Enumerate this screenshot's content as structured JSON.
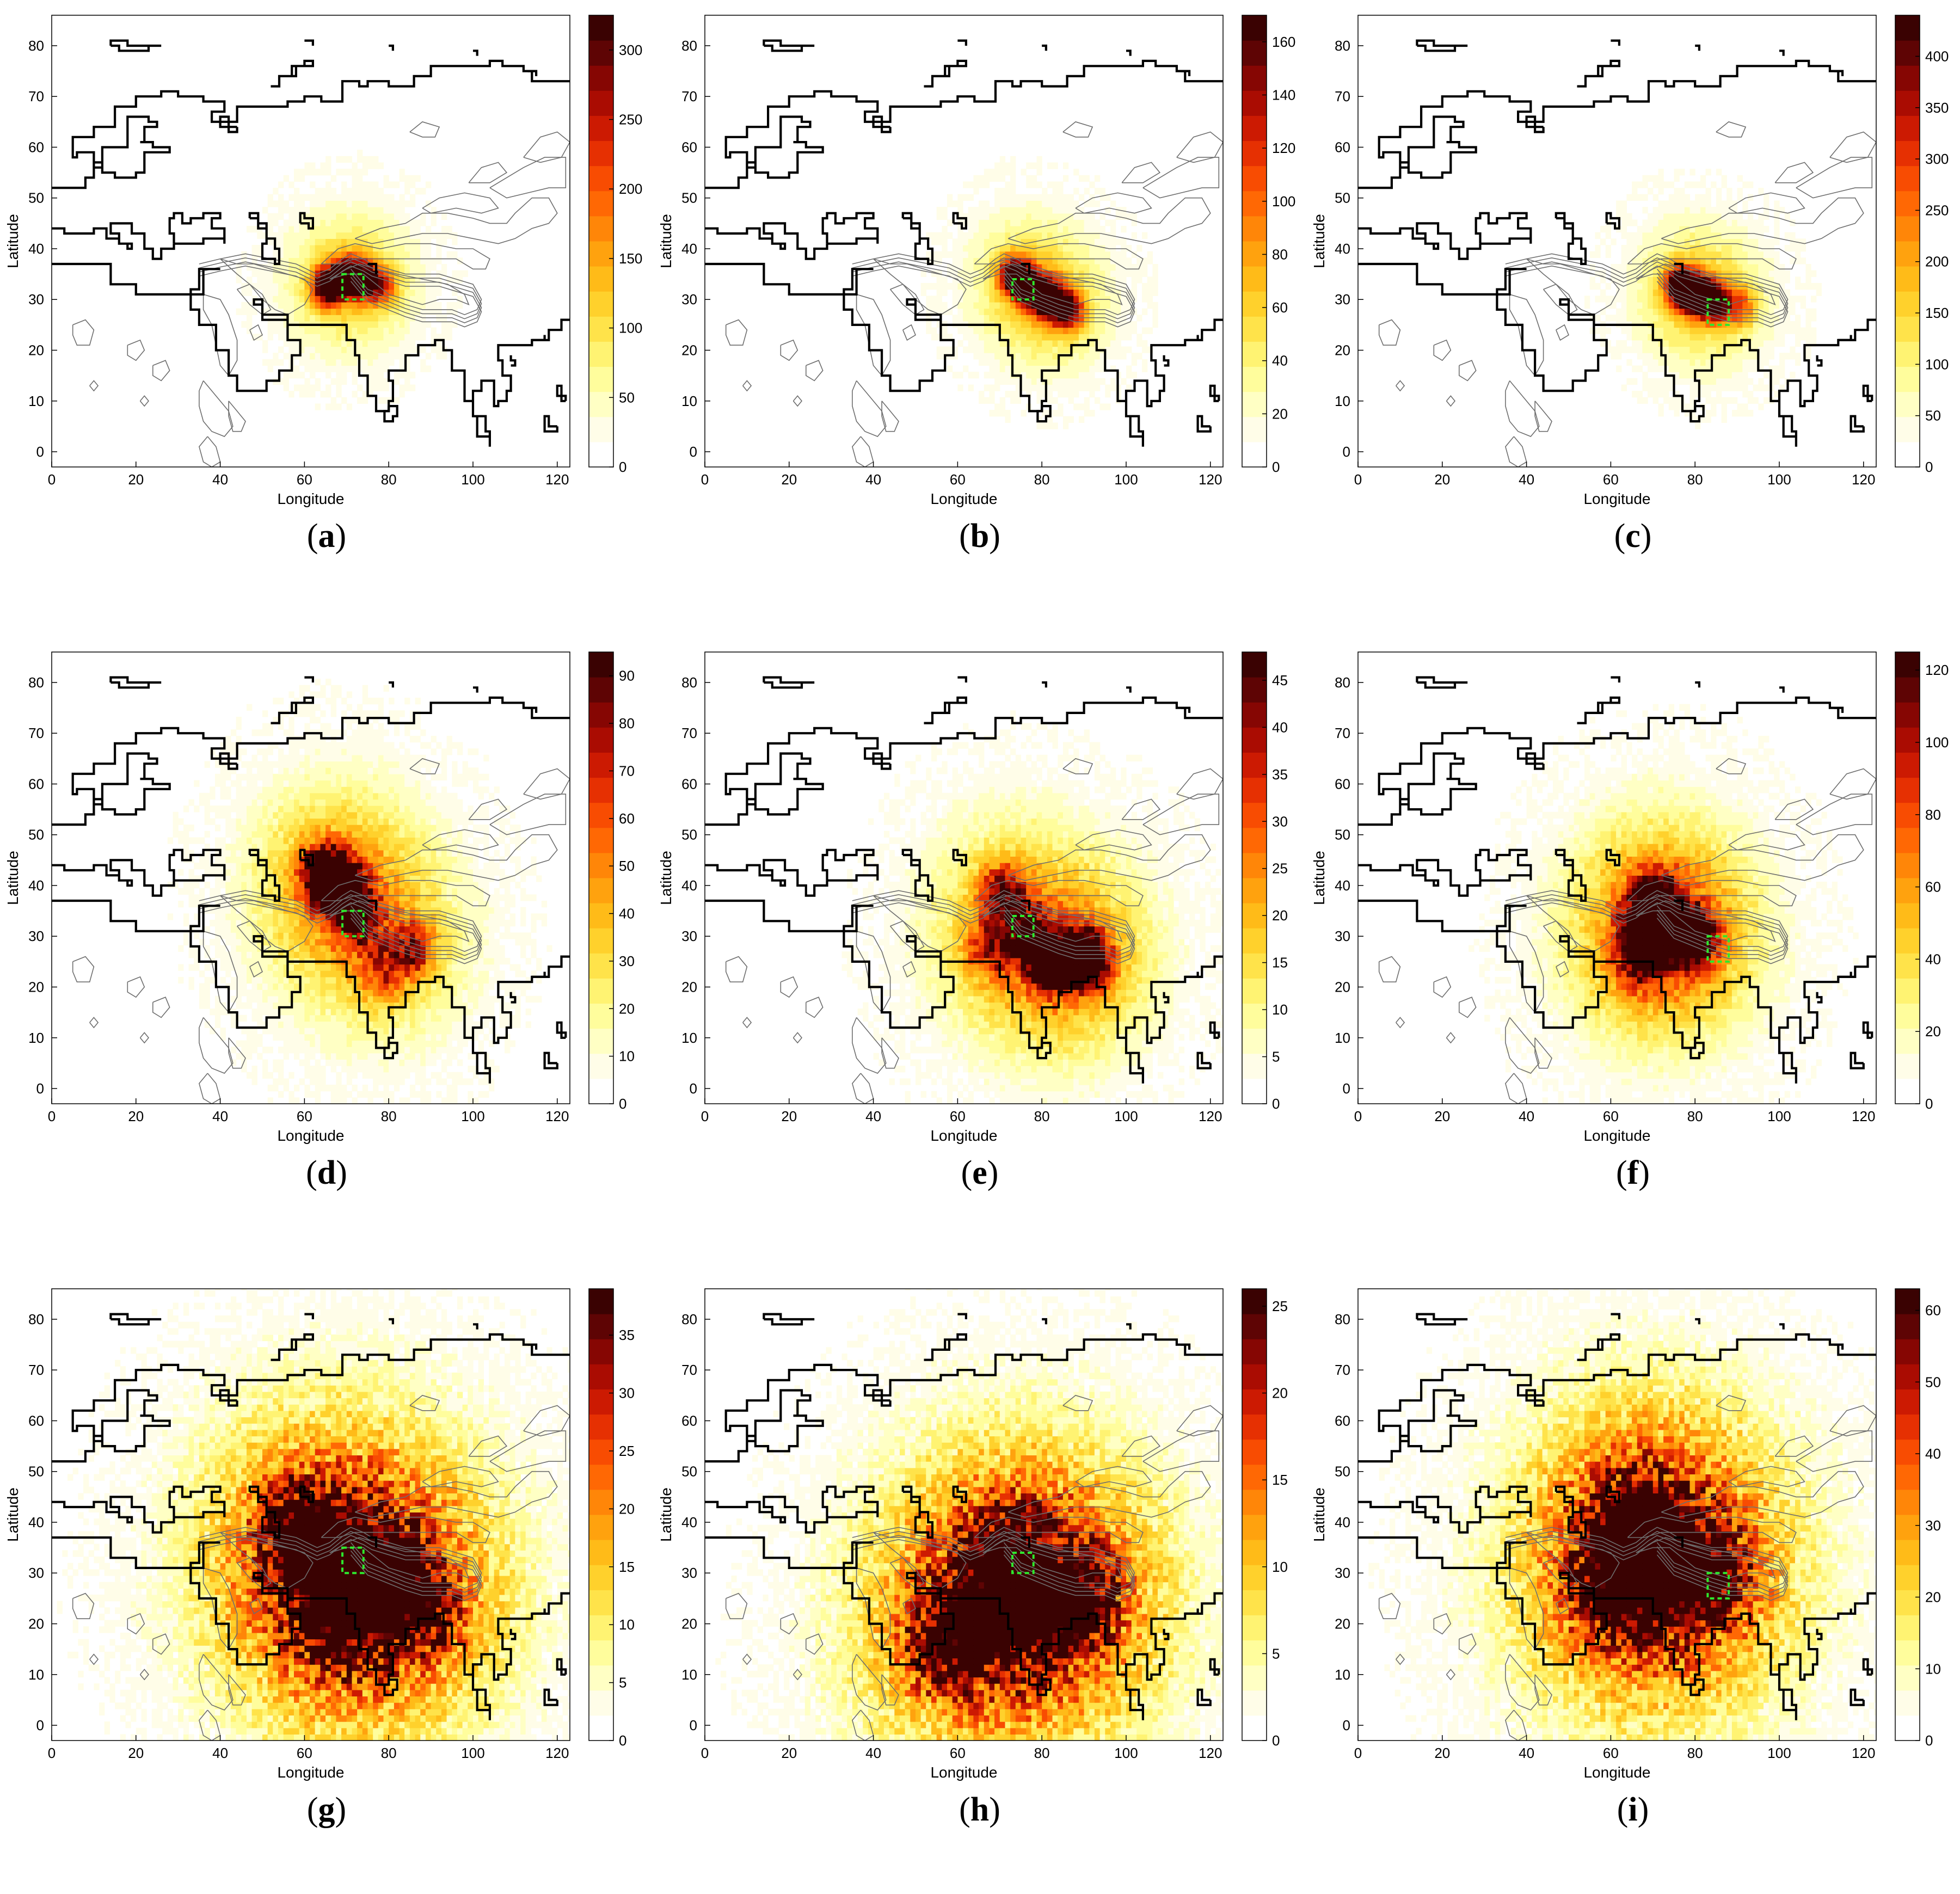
{
  "chart_data": [
    {
      "type": "heatmap",
      "panel": "a",
      "xlabel": "Longitude",
      "ylabel": "Latitude",
      "xticks": [
        0,
        20,
        40,
        60,
        80,
        100,
        120
      ],
      "yticks": [
        0,
        10,
        20,
        30,
        40,
        50,
        60,
        70,
        80
      ],
      "xlim": [
        0,
        123
      ],
      "ylim": [
        -3,
        86
      ],
      "colorbar": {
        "min": 0,
        "max": 325,
        "ticks": [
          0,
          50,
          100,
          150,
          200,
          250,
          300
        ]
      },
      "source_box": {
        "lon": [
          69,
          74
        ],
        "lat": [
          30,
          35
        ]
      },
      "hotspots": [
        {
          "lon": 65,
          "lat": 32,
          "intensity": 1.0
        },
        {
          "lon": 70,
          "lat": 34,
          "intensity": 0.85
        },
        {
          "lon": 74,
          "lat": 33,
          "intensity": 0.6
        },
        {
          "lon": 78,
          "lat": 32,
          "intensity": 0.4
        }
      ],
      "spread": "narrow",
      "label": "(a)"
    },
    {
      "type": "heatmap",
      "panel": "b",
      "xlabel": "Longitude",
      "ylabel": "Latitude",
      "xticks": [
        0,
        20,
        40,
        60,
        80,
        100,
        120
      ],
      "yticks": [
        0,
        10,
        20,
        30,
        40,
        50,
        60,
        70,
        80
      ],
      "xlim": [
        0,
        123
      ],
      "ylim": [
        -3,
        86
      ],
      "colorbar": {
        "min": 0,
        "max": 170,
        "ticks": [
          0,
          20,
          40,
          60,
          80,
          100,
          120,
          140,
          160
        ]
      },
      "source_box": {
        "lon": [
          73,
          78
        ],
        "lat": [
          30,
          34
        ]
      },
      "hotspots": [
        {
          "lon": 73,
          "lat": 34,
          "intensity": 1.0
        },
        {
          "lon": 78,
          "lat": 31,
          "intensity": 0.9
        },
        {
          "lon": 82,
          "lat": 29,
          "intensity": 0.8
        },
        {
          "lon": 86,
          "lat": 27,
          "intensity": 0.6
        }
      ],
      "spread": "narrow",
      "label": "(b)"
    },
    {
      "type": "heatmap",
      "panel": "c",
      "xlabel": "Longitude",
      "ylabel": "Latitude",
      "xticks": [
        0,
        20,
        40,
        60,
        80,
        100,
        120
      ],
      "yticks": [
        0,
        10,
        20,
        30,
        40,
        50,
        60,
        70,
        80
      ],
      "xlim": [
        0,
        123
      ],
      "ylim": [
        -3,
        86
      ],
      "colorbar": {
        "min": 0,
        "max": 440,
        "ticks": [
          0,
          50,
          100,
          150,
          200,
          250,
          300,
          350,
          400
        ]
      },
      "source_box": {
        "lon": [
          83,
          88
        ],
        "lat": [
          25,
          30
        ]
      },
      "hotspots": [
        {
          "lon": 76,
          "lat": 32,
          "intensity": 1.0
        },
        {
          "lon": 80,
          "lat": 30,
          "intensity": 0.9
        },
        {
          "lon": 84,
          "lat": 29,
          "intensity": 0.7
        },
        {
          "lon": 90,
          "lat": 28,
          "intensity": 0.4
        }
      ],
      "spread": "narrow",
      "label": "(c)"
    },
    {
      "type": "heatmap",
      "panel": "d",
      "xlabel": "Longitude",
      "ylabel": "Latitude",
      "xticks": [
        0,
        20,
        40,
        60,
        80,
        100,
        120
      ],
      "yticks": [
        0,
        10,
        20,
        30,
        40,
        50,
        60,
        70,
        80
      ],
      "xlim": [
        0,
        123
      ],
      "ylim": [
        -3,
        86
      ],
      "colorbar": {
        "min": 0,
        "max": 95,
        "ticks": [
          0,
          10,
          20,
          30,
          40,
          50,
          60,
          70,
          80,
          90
        ]
      },
      "source_box": {
        "lon": [
          69,
          74
        ],
        "lat": [
          30,
          35
        ]
      },
      "hotspots": [
        {
          "lon": 68,
          "lat": 39,
          "intensity": 1.0
        },
        {
          "lon": 64,
          "lat": 42,
          "intensity": 0.7
        },
        {
          "lon": 72,
          "lat": 33,
          "intensity": 0.55
        },
        {
          "lon": 85,
          "lat": 27,
          "intensity": 0.5
        },
        {
          "lon": 78,
          "lat": 22,
          "intensity": 0.35
        }
      ],
      "spread": "medium",
      "label": "(d)"
    },
    {
      "type": "heatmap",
      "panel": "e",
      "xlabel": "Longitude",
      "ylabel": "Latitude",
      "xticks": [
        0,
        20,
        40,
        60,
        80,
        100,
        120
      ],
      "yticks": [
        0,
        10,
        20,
        30,
        40,
        50,
        60,
        70,
        80
      ],
      "xlim": [
        0,
        123
      ],
      "ylim": [
        -3,
        86
      ],
      "colorbar": {
        "min": 0,
        "max": 48,
        "ticks": [
          0,
          5,
          10,
          15,
          20,
          25,
          30,
          35,
          40,
          45
        ]
      },
      "source_box": {
        "lon": [
          73,
          78
        ],
        "lat": [
          30,
          34
        ]
      },
      "hotspots": [
        {
          "lon": 90,
          "lat": 25,
          "intensity": 1.0
        },
        {
          "lon": 82,
          "lat": 24,
          "intensity": 0.85
        },
        {
          "lon": 70,
          "lat": 38,
          "intensity": 0.6
        },
        {
          "lon": 76,
          "lat": 30,
          "intensity": 0.5
        },
        {
          "lon": 67,
          "lat": 27,
          "intensity": 0.4
        }
      ],
      "spread": "medium",
      "label": "(e)"
    },
    {
      "type": "heatmap",
      "panel": "f",
      "xlabel": "Longitude",
      "ylabel": "Latitude",
      "xticks": [
        0,
        20,
        40,
        60,
        80,
        100,
        120
      ],
      "yticks": [
        0,
        10,
        20,
        30,
        40,
        50,
        60,
        70,
        80
      ],
      "xlim": [
        0,
        123
      ],
      "ylim": [
        -3,
        86
      ],
      "colorbar": {
        "min": 0,
        "max": 125,
        "ticks": [
          0,
          20,
          40,
          60,
          80,
          100,
          120
        ]
      },
      "source_box": {
        "lon": [
          83,
          88
        ],
        "lat": [
          25,
          30
        ]
      },
      "hotspots": [
        {
          "lon": 68,
          "lat": 31,
          "intensity": 1.0
        },
        {
          "lon": 74,
          "lat": 30,
          "intensity": 0.9
        },
        {
          "lon": 80,
          "lat": 29,
          "intensity": 0.6
        },
        {
          "lon": 70,
          "lat": 38,
          "intensity": 0.45
        },
        {
          "lon": 66,
          "lat": 24,
          "intensity": 0.4
        }
      ],
      "spread": "medium",
      "label": "(f)"
    },
    {
      "type": "heatmap",
      "panel": "g",
      "xlabel": "Longitude",
      "ylabel": "Latitude",
      "xticks": [
        0,
        20,
        40,
        60,
        80,
        100,
        120
      ],
      "yticks": [
        0,
        10,
        20,
        30,
        40,
        50,
        60,
        70,
        80
      ],
      "xlim": [
        0,
        123
      ],
      "ylim": [
        -3,
        86
      ],
      "colorbar": {
        "min": 0,
        "max": 39,
        "ticks": [
          0,
          5,
          10,
          15,
          20,
          25,
          30,
          35
        ]
      },
      "source_box": {
        "lon": [
          69,
          74
        ],
        "lat": [
          30,
          35
        ]
      },
      "hotspots": [
        {
          "lon": 72,
          "lat": 28,
          "intensity": 0.9
        },
        {
          "lon": 64,
          "lat": 33,
          "intensity": 0.8
        },
        {
          "lon": 80,
          "lat": 28,
          "intensity": 0.7
        },
        {
          "lon": 58,
          "lat": 38,
          "intensity": 0.6
        },
        {
          "lon": 66,
          "lat": 20,
          "intensity": 0.55
        },
        {
          "lon": 88,
          "lat": 22,
          "intensity": 0.45
        }
      ],
      "spread": "wide",
      "label": "(g)"
    },
    {
      "type": "heatmap",
      "panel": "h",
      "xlabel": "Longitude",
      "ylabel": "Latitude",
      "xticks": [
        0,
        20,
        40,
        60,
        80,
        100,
        120
      ],
      "yticks": [
        0,
        10,
        20,
        30,
        40,
        50,
        60,
        70,
        80
      ],
      "xlim": [
        0,
        123
      ],
      "ylim": [
        -3,
        86
      ],
      "colorbar": {
        "min": 0,
        "max": 26,
        "ticks": [
          0,
          5,
          10,
          15,
          20,
          25
        ]
      },
      "source_box": {
        "lon": [
          73,
          78
        ],
        "lat": [
          30,
          34
        ]
      },
      "hotspots": [
        {
          "lon": 73,
          "lat": 24,
          "intensity": 0.9
        },
        {
          "lon": 83,
          "lat": 23,
          "intensity": 0.75
        },
        {
          "lon": 63,
          "lat": 20,
          "intensity": 0.7
        },
        {
          "lon": 72,
          "lat": 34,
          "intensity": 0.6
        },
        {
          "lon": 55,
          "lat": 15,
          "intensity": 0.5
        },
        {
          "lon": 90,
          "lat": 25,
          "intensity": 0.45
        }
      ],
      "spread": "wide",
      "label": "(h)"
    },
    {
      "type": "heatmap",
      "panel": "i",
      "xlabel": "Longitude",
      "ylabel": "Latitude",
      "xticks": [
        0,
        20,
        40,
        60,
        80,
        100,
        120
      ],
      "yticks": [
        0,
        10,
        20,
        30,
        40,
        50,
        60,
        70,
        80
      ],
      "xlim": [
        0,
        123
      ],
      "ylim": [
        -3,
        86
      ],
      "colorbar": {
        "min": 0,
        "max": 63,
        "ticks": [
          0,
          10,
          20,
          30,
          40,
          50,
          60
        ]
      },
      "source_box": {
        "lon": [
          83,
          88
        ],
        "lat": [
          25,
          30
        ]
      },
      "hotspots": [
        {
          "lon": 66,
          "lat": 39,
          "intensity": 1.0
        },
        {
          "lon": 68,
          "lat": 31,
          "intensity": 0.9
        },
        {
          "lon": 76,
          "lat": 30,
          "intensity": 0.75
        },
        {
          "lon": 60,
          "lat": 26,
          "intensity": 0.6
        },
        {
          "lon": 84,
          "lat": 28,
          "intensity": 0.45
        }
      ],
      "spread": "wide",
      "label": "(i)"
    }
  ],
  "colormap": [
    "#ffffff",
    "#fffde8",
    "#ffffc4",
    "#fffd9c",
    "#fff372",
    "#ffe34a",
    "#ffd12c",
    "#ffbb18",
    "#ffa20e",
    "#ff8608",
    "#ff6804",
    "#f84c02",
    "#e63002",
    "#cc1a02",
    "#aa0c02",
    "#860603",
    "#5e0404",
    "#3a0202"
  ],
  "colors": {
    "coast": "#000000",
    "contour": "#6e6e6e",
    "source_box": "#2ee82e"
  }
}
